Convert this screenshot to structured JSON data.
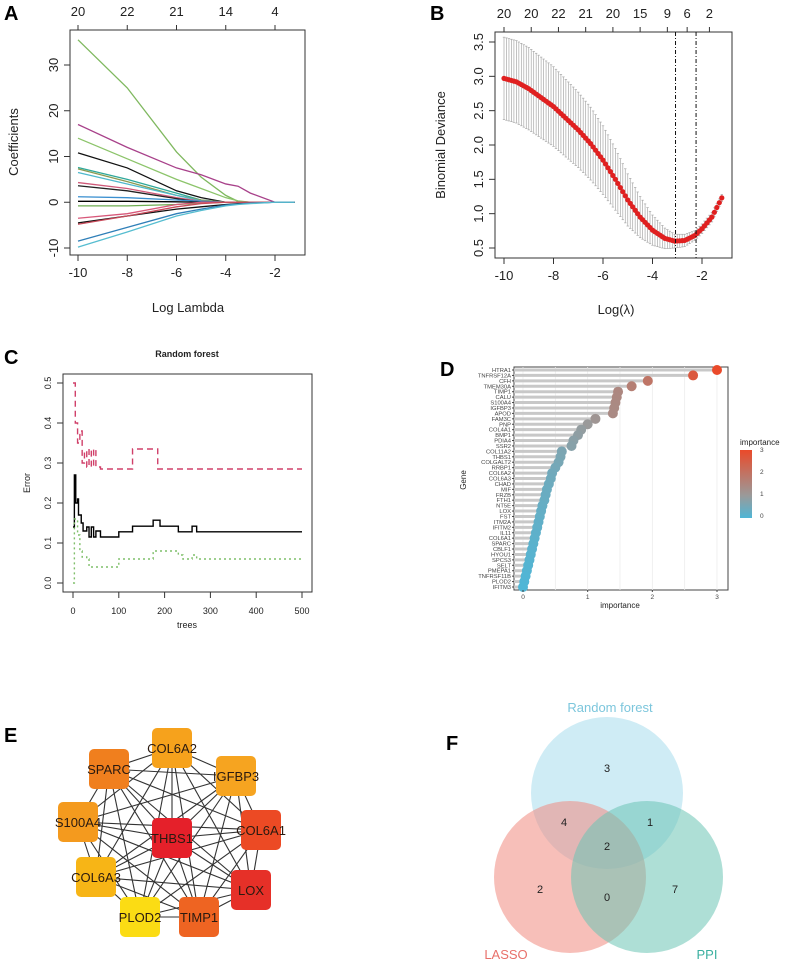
{
  "panel_labels": [
    "A",
    "B",
    "C",
    "D",
    "E",
    "F"
  ],
  "chart_data": [
    {
      "panel": "A",
      "type": "line",
      "xlabel": "Log Lambda",
      "ylabel": "Coefficients",
      "xlim": [
        -10.3,
        -0.9
      ],
      "ylim": [
        -11.5,
        37
      ],
      "xticks": [
        "-10",
        "-8",
        "-6",
        "-4",
        "-2"
      ],
      "xtick_values": [
        -10,
        -8,
        -6,
        -4,
        -2
      ],
      "yticks": [
        "-10",
        "0",
        "10",
        "20",
        "30"
      ],
      "ytick_values": [
        -10,
        0,
        10,
        20,
        30
      ],
      "top_ticks": [
        "20",
        "22",
        "21",
        "14",
        "4"
      ],
      "top_tick_values": [
        -10,
        -8,
        -6,
        -4,
        -2
      ],
      "x": [
        -10,
        -8,
        -6,
        -5,
        -4,
        -3.5,
        -3,
        -2,
        -1.2
      ],
      "series": [
        {
          "color": "#7fb85f",
          "values": [
            35.5,
            25,
            11,
            5.5,
            1.5,
            0.2,
            0,
            0,
            0
          ]
        },
        {
          "color": "#a8418a",
          "values": [
            17,
            12,
            7.5,
            6,
            4,
            3.5,
            2,
            0,
            0
          ]
        },
        {
          "color": "#8cc46a",
          "values": [
            14,
            9.5,
            5,
            3,
            1,
            0.3,
            0,
            0,
            0
          ]
        },
        {
          "color": "#111111",
          "values": [
            10.8,
            7.5,
            2.5,
            1,
            0,
            0,
            0,
            0,
            0
          ]
        },
        {
          "color": "#2ea89a",
          "values": [
            7.6,
            5,
            2,
            0.5,
            0,
            0,
            0,
            0,
            0
          ]
        },
        {
          "color": "#8a9a50",
          "values": [
            7.3,
            4.5,
            1.5,
            0.5,
            0,
            0,
            0,
            0,
            0
          ]
        },
        {
          "color": "#4fb8cc",
          "values": [
            6.5,
            4,
            1.5,
            0.3,
            0,
            0,
            0,
            0,
            0
          ]
        },
        {
          "color": "#d05a7a",
          "values": [
            4.3,
            3,
            1,
            0.2,
            0,
            0,
            0,
            0,
            0
          ]
        },
        {
          "color": "#222222",
          "values": [
            3.6,
            2.5,
            0.8,
            0,
            0,
            0,
            0,
            0,
            0
          ]
        },
        {
          "color": "#3a8fd0",
          "values": [
            1.2,
            1,
            0.5,
            0.2,
            0,
            0,
            0,
            0,
            0
          ]
        },
        {
          "color": "#000000",
          "values": [
            0.2,
            0.2,
            0.1,
            0,
            0,
            0,
            0,
            0,
            0
          ]
        },
        {
          "color": "#6fae52",
          "values": [
            -0.8,
            -0.8,
            -0.5,
            -0.2,
            0,
            0,
            0,
            0,
            0
          ]
        },
        {
          "color": "#d8587a",
          "values": [
            -3.5,
            -2.5,
            -0.5,
            0,
            0,
            0,
            0,
            0,
            0
          ]
        },
        {
          "color": "#111111",
          "values": [
            -4.5,
            -3,
            -1.5,
            -1,
            -0.5,
            -0.3,
            -0.2,
            0,
            0
          ]
        },
        {
          "color": "#c84a5a",
          "values": [
            -4.8,
            -3,
            -1,
            -0.3,
            0,
            0,
            0,
            0,
            0
          ]
        },
        {
          "color": "#2f7fb8",
          "values": [
            -8.5,
            -5.5,
            -2.5,
            -1.5,
            -0.6,
            -0.4,
            -0.2,
            0,
            0
          ]
        },
        {
          "color": "#56bdd0",
          "values": [
            -9.8,
            -6.5,
            -3,
            -1.8,
            -0.8,
            -0.5,
            -0.3,
            0,
            0
          ]
        }
      ]
    },
    {
      "panel": "B",
      "type": "scatter",
      "xlabel": "Log(λ)",
      "ylabel": "Binomial Deviance",
      "xlim": [
        -10.3,
        -0.9
      ],
      "ylim": [
        0.4,
        3.65
      ],
      "xticks": [
        "-10",
        "-8",
        "-6",
        "-4",
        "-2"
      ],
      "xtick_values": [
        -10,
        -8,
        -6,
        -4,
        -2
      ],
      "yticks": [
        "0.5",
        "1.0",
        "1.5",
        "2.0",
        "2.5",
        "3.0",
        "3.5"
      ],
      "ytick_values": [
        0.5,
        1.0,
        1.5,
        2.0,
        2.5,
        3.0,
        3.5
      ],
      "top_ticks": [
        "20",
        "20",
        "22",
        "21",
        "20",
        "15",
        "9",
        "6",
        "2"
      ],
      "top_tick_values": [
        -10,
        -8.9,
        -7.8,
        -6.7,
        -5.6,
        -4.5,
        -3.4,
        -2.6,
        -1.7
      ],
      "vlines": [
        -3.07,
        -2.24
      ],
      "point_color": "#e02020",
      "errorbar_color": "#a8a8a8",
      "x": [
        -10,
        -9.5,
        -9,
        -8,
        -7,
        -6.5,
        -6,
        -5.5,
        -5,
        -4.5,
        -4,
        -3.5,
        -3.1,
        -2.7,
        -2.3,
        -2,
        -1.6,
        -1.2
      ],
      "deviance": [
        2.97,
        2.92,
        2.82,
        2.56,
        2.22,
        2.02,
        1.78,
        1.5,
        1.2,
        0.95,
        0.76,
        0.64,
        0.6,
        0.61,
        0.68,
        0.78,
        0.95,
        1.23
      ],
      "se": [
        0.6,
        0.6,
        0.6,
        0.58,
        0.55,
        0.53,
        0.5,
        0.45,
        0.38,
        0.3,
        0.22,
        0.15,
        0.1,
        0.09,
        0.07,
        0.07,
        0.07,
        0.05
      ]
    },
    {
      "panel": "C",
      "type": "line",
      "title": "Random forest",
      "xlabel": "trees",
      "ylabel": "Error",
      "xlim": [
        -20,
        520
      ],
      "ylim": [
        -0.02,
        0.52
      ],
      "xticks": [
        "0",
        "100",
        "200",
        "300",
        "400",
        "500"
      ],
      "xtick_values": [
        0,
        100,
        200,
        300,
        400,
        500
      ],
      "yticks": [
        "0.0",
        "0.1",
        "0.2",
        "0.3",
        "0.4",
        "0.5"
      ],
      "ytick_values": [
        0,
        0.1,
        0.2,
        0.3,
        0.4,
        0.5
      ],
      "series": [
        {
          "color": "#d0406a",
          "dash": "6,4",
          "points": [
            [
              0,
              0.5
            ],
            [
              5,
              0.4
            ],
            [
              10,
              0.35
            ],
            [
              15,
              0.38
            ],
            [
              20,
              0.3
            ],
            [
              25,
              0.33
            ],
            [
              30,
              0.29
            ],
            [
              35,
              0.335
            ],
            [
              40,
              0.29
            ],
            [
              45,
              0.335
            ],
            [
              50,
              0.29
            ],
            [
              60,
              0.285
            ],
            [
              130,
              0.335
            ],
            [
              185,
              0.285
            ],
            [
              500,
              0.285
            ]
          ]
        },
        {
          "color": "#000000",
          "dash": "",
          "points": [
            [
              0,
              0.14
            ],
            [
              3,
              0.27
            ],
            [
              6,
              0.2
            ],
            [
              10,
              0.21
            ],
            [
              12,
              0.17
            ],
            [
              18,
              0.15
            ],
            [
              22,
              0.13
            ],
            [
              30,
              0.14
            ],
            [
              35,
              0.115
            ],
            [
              40,
              0.14
            ],
            [
              45,
              0.115
            ],
            [
              50,
              0.13
            ],
            [
              60,
              0.115
            ],
            [
              100,
              0.128
            ],
            [
              130,
              0.142
            ],
            [
              175,
              0.157
            ],
            [
              190,
              0.142
            ],
            [
              230,
              0.128
            ],
            [
              260,
              0.142
            ],
            [
              270,
              0.128
            ],
            [
              500,
              0.128
            ]
          ]
        },
        {
          "color": "#7fbf6a",
          "dash": "2,3",
          "points": [
            [
              0,
              0
            ],
            [
              3,
              0.16
            ],
            [
              10,
              0.12
            ],
            [
              15,
              0.08
            ],
            [
              20,
              0.065
            ],
            [
              30,
              0.06
            ],
            [
              35,
              0.04
            ],
            [
              100,
              0.06
            ],
            [
              175,
              0.08
            ],
            [
              230,
              0.07
            ],
            [
              240,
              0.06
            ],
            [
              260,
              0.07
            ],
            [
              270,
              0.06
            ],
            [
              500,
              0.06
            ]
          ]
        }
      ]
    },
    {
      "panel": "D",
      "type": "scatter",
      "xlabel": "importance",
      "ylabel": "Gene",
      "xlim": [
        -0.07,
        3.15
      ],
      "xticks": [
        "0",
        "1",
        "2",
        "3"
      ],
      "xtick_values": [
        0,
        1,
        2,
        3
      ],
      "legend": {
        "title": "importance",
        "labels": [
          "3",
          "2",
          "1",
          "0"
        ],
        "values": [
          3,
          2,
          1,
          0
        ],
        "placement": "right"
      },
      "color_scale": {
        "low": "#4fb6d6",
        "mid": "#9a9a9a",
        "high": "#ea4a2a"
      },
      "genes": [
        "HTRA1",
        "TNFRSF12A",
        "CFH",
        "TMEM30A",
        "TIMP1",
        "CALU",
        "S100A4",
        "IGFBP3",
        "APOD",
        "FAM3C",
        "PNP",
        "COL4A1",
        "BMP1",
        "PDIA4",
        "SSR2",
        "COL11A2",
        "THBS1",
        "COLGALT2",
        "RRBP1",
        "COL6A2",
        "COL6A3",
        "CHAD",
        "MIF",
        "FRZB",
        "FTH1",
        "NT5E",
        "LOX",
        "FST",
        "ITM2A",
        "IFITM2",
        "IL11",
        "COL6A1",
        "SPARC",
        "CBLF1",
        "HYOU1",
        "SPCS3",
        "SELT",
        "PMEPA1",
        "TNFRSF11B",
        "PLOD2",
        "IFITM3"
      ],
      "importance": [
        3.0,
        2.63,
        1.93,
        1.68,
        1.47,
        1.45,
        1.43,
        1.41,
        1.39,
        1.12,
        1.0,
        0.9,
        0.85,
        0.78,
        0.75,
        0.6,
        0.58,
        0.55,
        0.5,
        0.45,
        0.43,
        0.4,
        0.37,
        0.35,
        0.33,
        0.3,
        0.28,
        0.26,
        0.24,
        0.22,
        0.2,
        0.18,
        0.16,
        0.14,
        0.12,
        0.1,
        0.08,
        0.06,
        0.04,
        0.02,
        0.0
      ]
    },
    {
      "panel": "E",
      "type": "network",
      "edge_color": "#333333",
      "nodes": [
        {
          "label": "COL6A2",
          "color": "#f6a21c"
        },
        {
          "label": "SPARC",
          "color": "#f07f1e"
        },
        {
          "label": "IGFBP3",
          "color": "#f6a420"
        },
        {
          "label": "S100A4",
          "color": "#f49a1e"
        },
        {
          "label": "THBS1",
          "color": "#e5202a"
        },
        {
          "label": "COL6A1",
          "color": "#ec4a24"
        },
        {
          "label": "COL6A3",
          "color": "#f7b516"
        },
        {
          "label": "LOX",
          "color": "#e63028"
        },
        {
          "label": "PLOD2",
          "color": "#fbdc14"
        },
        {
          "label": "TIMP1",
          "color": "#ee6422"
        }
      ]
    },
    {
      "panel": "F",
      "type": "venn",
      "sets": [
        {
          "name": "Random forest",
          "color": "#a8dcec",
          "label_color": "#7cc6dc"
        },
        {
          "name": "LASSO",
          "color": "#f08a80",
          "label_color": "#e8706a"
        },
        {
          "name": "PPI",
          "color": "#6cc4b4",
          "label_color": "#3bb0a0"
        }
      ],
      "regions": [
        {
          "sets": [
            "Random forest"
          ],
          "count": "3"
        },
        {
          "sets": [
            "Random forest",
            "LASSO"
          ],
          "count": "4"
        },
        {
          "sets": [
            "Random forest",
            "PPI"
          ],
          "count": "1"
        },
        {
          "sets": [
            "Random forest",
            "LASSO",
            "PPI"
          ],
          "count": "2"
        },
        {
          "sets": [
            "LASSO"
          ],
          "count": "2"
        },
        {
          "sets": [
            "LASSO",
            "PPI"
          ],
          "count": "0"
        },
        {
          "sets": [
            "PPI"
          ],
          "count": "7"
        }
      ]
    }
  ]
}
